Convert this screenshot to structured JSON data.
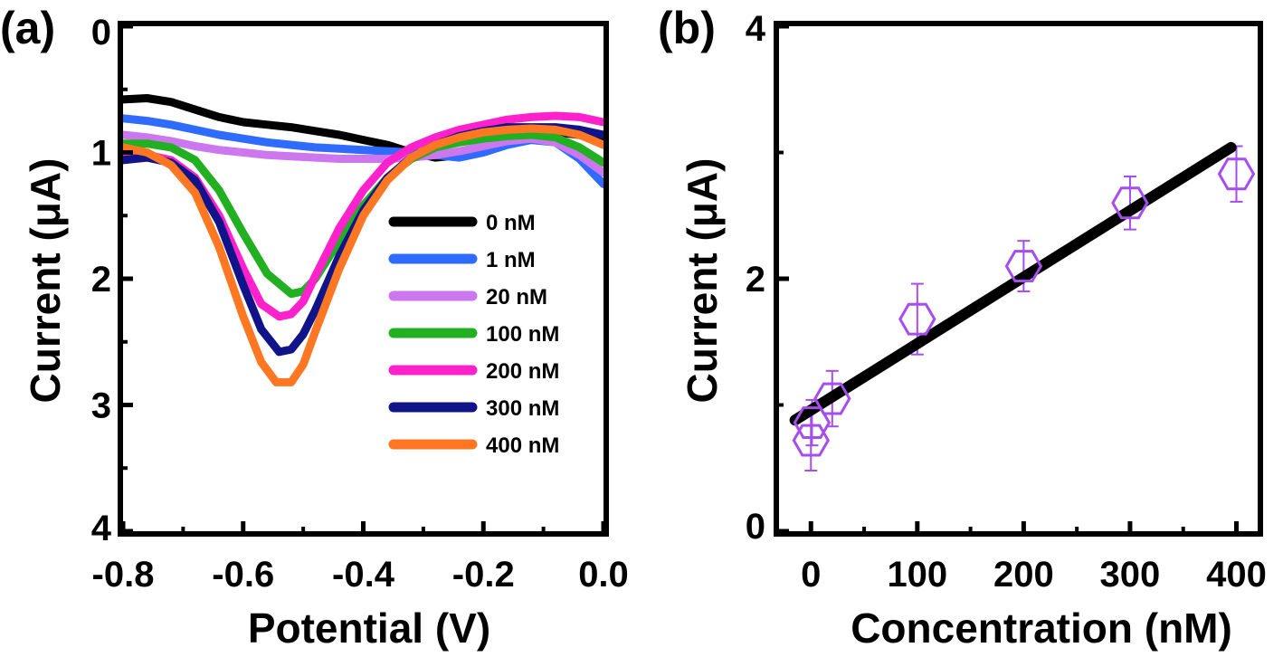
{
  "chart_data": [
    {
      "panel_label": "(a)",
      "type": "line",
      "xlabel": "Potential (V)",
      "ylabel": "Current (μA)",
      "xlim": [
        -0.8,
        0.0
      ],
      "ylim": [
        0,
        4
      ],
      "y_inverted": true,
      "xticks": [
        "-0.8",
        "-0.6",
        "-0.4",
        "-0.2",
        "0.0"
      ],
      "yticks": [
        "0",
        "1",
        "2",
        "3",
        "4"
      ],
      "legend_position": "center-right",
      "grid": false,
      "series": [
        {
          "name": "0 nM",
          "color": "#000000",
          "x": [
            -0.8,
            -0.76,
            -0.72,
            -0.68,
            -0.64,
            -0.6,
            -0.56,
            -0.52,
            -0.48,
            -0.44,
            -0.4,
            -0.36,
            -0.32,
            -0.28,
            -0.24,
            -0.2,
            -0.16,
            -0.12,
            -0.08,
            -0.04,
            0.0
          ],
          "y": [
            0.58,
            0.57,
            0.6,
            0.66,
            0.72,
            0.76,
            0.78,
            0.8,
            0.83,
            0.86,
            0.9,
            0.94,
            1.0,
            1.04,
            1.02,
            0.96,
            0.9,
            0.86,
            0.84,
            0.86,
            0.9
          ]
        },
        {
          "name": "1 nM",
          "color": "#2f6bff",
          "x": [
            -0.8,
            -0.76,
            -0.72,
            -0.68,
            -0.64,
            -0.6,
            -0.56,
            -0.52,
            -0.48,
            -0.44,
            -0.4,
            -0.36,
            -0.32,
            -0.28,
            -0.24,
            -0.2,
            -0.16,
            -0.12,
            -0.08,
            -0.04,
            0.0
          ],
          "y": [
            0.73,
            0.75,
            0.78,
            0.82,
            0.86,
            0.89,
            0.92,
            0.94,
            0.96,
            0.97,
            0.98,
            0.99,
            1.0,
            1.02,
            1.04,
            1.0,
            0.94,
            0.9,
            0.92,
            1.05,
            1.25
          ]
        },
        {
          "name": "20 nM",
          "color": "#cc77ee",
          "x": [
            -0.8,
            -0.76,
            -0.72,
            -0.68,
            -0.64,
            -0.6,
            -0.56,
            -0.52,
            -0.48,
            -0.44,
            -0.4,
            -0.36,
            -0.32,
            -0.28,
            -0.24,
            -0.2,
            -0.16,
            -0.12,
            -0.08,
            -0.04,
            0.0
          ],
          "y": [
            0.86,
            0.88,
            0.91,
            0.95,
            0.98,
            1.0,
            1.02,
            1.03,
            1.04,
            1.05,
            1.05,
            1.05,
            1.04,
            1.02,
            0.99,
            0.95,
            0.91,
            0.89,
            0.92,
            1.02,
            1.16
          ]
        },
        {
          "name": "100 nM",
          "color": "#22b022",
          "x": [
            -0.8,
            -0.76,
            -0.72,
            -0.68,
            -0.64,
            -0.6,
            -0.56,
            -0.52,
            -0.5,
            -0.48,
            -0.44,
            -0.4,
            -0.36,
            -0.32,
            -0.28,
            -0.24,
            -0.2,
            -0.16,
            -0.12,
            -0.08,
            -0.04,
            0.0
          ],
          "y": [
            0.93,
            0.93,
            0.96,
            1.06,
            1.3,
            1.64,
            1.96,
            2.12,
            2.1,
            2.0,
            1.7,
            1.42,
            1.2,
            1.05,
            0.96,
            0.92,
            0.89,
            0.87,
            0.86,
            0.88,
            0.96,
            1.08
          ]
        },
        {
          "name": "200 nM",
          "color": "#ff22cc",
          "x": [
            -0.8,
            -0.76,
            -0.72,
            -0.68,
            -0.64,
            -0.6,
            -0.57,
            -0.54,
            -0.52,
            -0.5,
            -0.48,
            -0.44,
            -0.4,
            -0.36,
            -0.32,
            -0.28,
            -0.24,
            -0.2,
            -0.16,
            -0.12,
            -0.08,
            -0.04,
            0.0
          ],
          "y": [
            1.02,
            1.02,
            1.06,
            1.2,
            1.5,
            1.92,
            2.2,
            2.3,
            2.28,
            2.18,
            1.98,
            1.6,
            1.3,
            1.08,
            0.96,
            0.88,
            0.82,
            0.78,
            0.74,
            0.72,
            0.71,
            0.72,
            0.76
          ]
        },
        {
          "name": "300 nM",
          "color": "#101488",
          "x": [
            -0.8,
            -0.76,
            -0.72,
            -0.68,
            -0.64,
            -0.6,
            -0.57,
            -0.54,
            -0.52,
            -0.5,
            -0.48,
            -0.44,
            -0.4,
            -0.36,
            -0.32,
            -0.28,
            -0.24,
            -0.2,
            -0.16,
            -0.12,
            -0.08,
            -0.04,
            0.0
          ],
          "y": [
            1.06,
            1.04,
            1.08,
            1.22,
            1.55,
            2.05,
            2.4,
            2.58,
            2.56,
            2.44,
            2.25,
            1.82,
            1.46,
            1.2,
            1.04,
            0.94,
            0.87,
            0.83,
            0.8,
            0.8,
            0.8,
            0.82,
            0.86
          ]
        },
        {
          "name": "400 nM",
          "color": "#ff7722",
          "x": [
            -0.8,
            -0.76,
            -0.72,
            -0.68,
            -0.64,
            -0.6,
            -0.57,
            -0.545,
            -0.52,
            -0.5,
            -0.48,
            -0.44,
            -0.4,
            -0.36,
            -0.32,
            -0.28,
            -0.24,
            -0.2,
            -0.16,
            -0.12,
            -0.08,
            -0.04,
            0.0
          ],
          "y": [
            0.96,
            1.0,
            1.1,
            1.32,
            1.75,
            2.3,
            2.66,
            2.82,
            2.82,
            2.68,
            2.42,
            1.92,
            1.5,
            1.22,
            1.04,
            0.94,
            0.88,
            0.84,
            0.82,
            0.81,
            0.82,
            0.86,
            0.94
          ]
        }
      ]
    },
    {
      "panel_label": "(b)",
      "type": "scatter",
      "xlabel": "Concentration  (nM)",
      "ylabel": "Current (μA)",
      "xlim": [
        -30,
        420
      ],
      "ylim": [
        0,
        4
      ],
      "xticks": [
        "0",
        "100",
        "200",
        "300",
        "400"
      ],
      "yticks": [
        "0",
        "2",
        "4"
      ],
      "grid": false,
      "marker": "hexagon-open",
      "marker_color": "#a64dee",
      "points": {
        "x": [
          0,
          1,
          20,
          100,
          200,
          300,
          400
        ],
        "y": [
          0.72,
          0.86,
          1.05,
          1.68,
          2.1,
          2.6,
          2.83
        ],
        "err": [
          0.24,
          0.18,
          0.22,
          0.28,
          0.2,
          0.21,
          0.22
        ]
      },
      "fit_line": {
        "x": [
          -15,
          395
        ],
        "y": [
          0.88,
          3.04
        ],
        "color": "#000000"
      }
    }
  ]
}
